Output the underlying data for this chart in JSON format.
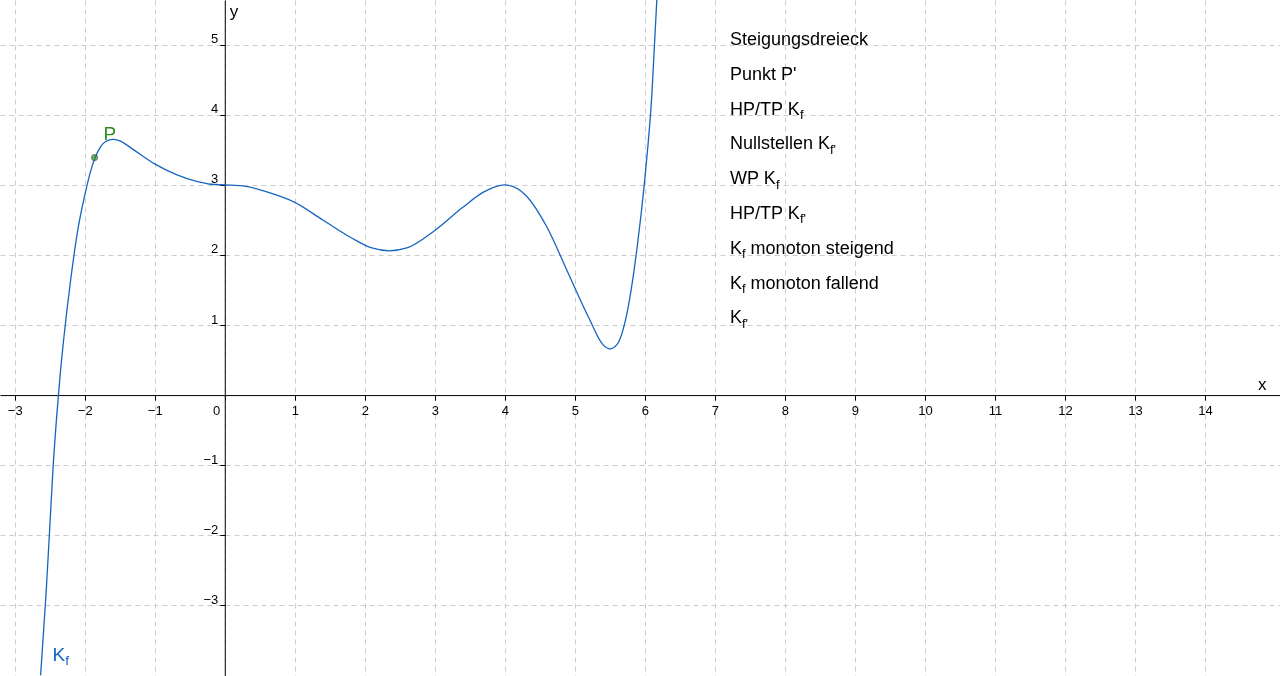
{
  "chart_data": {
    "type": "line",
    "xlabel": "x",
    "ylabel": "y",
    "xlim": [
      -3.21,
      15.07
    ],
    "ylim": [
      -4.01,
      5.64
    ],
    "xticks": [
      -3,
      -2,
      -1,
      0,
      1,
      2,
      3,
      4,
      5,
      6,
      7,
      8,
      9,
      10,
      11,
      12,
      13,
      14
    ],
    "yticks": [
      -3,
      -2,
      -1,
      1,
      2,
      3,
      4,
      5
    ],
    "grid": true,
    "line_style": "solid",
    "series": [
      {
        "name": "K$_{f}$",
        "color": "#1565c0",
        "marker": "none",
        "x": [
          -2.63,
          -2.55,
          -2.5,
          -2.45,
          -2.4,
          -2.35,
          -2.3,
          -2.2,
          -2.1,
          -2.0,
          -1.9,
          -1.8,
          -1.7,
          -1.6,
          -1.5,
          -1.3,
          -1.0,
          -0.7,
          -0.4,
          -0.2,
          0,
          0.3,
          0.6,
          1.0,
          1.4,
          1.8,
          2.1,
          2.35,
          2.6,
          3.0,
          3.4,
          3.7,
          4.0,
          4.3,
          4.6,
          4.9,
          5.2,
          5.4,
          5.5,
          5.6,
          5.75,
          5.9,
          6.0,
          6.1,
          6.17
        ],
        "values": [
          -4.0,
          -2.8,
          -1.9,
          -1.0,
          -0.3,
          0.3,
          0.8,
          1.65,
          2.35,
          2.85,
          3.25,
          3.5,
          3.62,
          3.65,
          3.63,
          3.5,
          3.3,
          3.15,
          3.05,
          3.01,
          3.0,
          2.98,
          2.9,
          2.75,
          2.5,
          2.25,
          2.1,
          2.06,
          2.1,
          2.35,
          2.68,
          2.9,
          3.0,
          2.85,
          2.4,
          1.75,
          1.1,
          0.72,
          0.66,
          0.72,
          1.2,
          2.2,
          3.1,
          4.3,
          5.64
        ]
      },
      {
        "name": "P",
        "type": "scatter",
        "color": "#2e8b1e",
        "marker": "circle",
        "x": [
          -1.86
        ],
        "values": [
          3.39
        ]
      }
    ],
    "annotations": [
      "Steigungsdreieck",
      "Punkt P'",
      "HP/TP K$_{f}$",
      "Nullstellen K$_{f'}$",
      "WP K$_{f}$",
      "HP/TP K$_{f'}$",
      "K$_{f}$ monoton steigend",
      "K$_{f}$ monoton fallend",
      "K$_{f'}$"
    ]
  }
}
